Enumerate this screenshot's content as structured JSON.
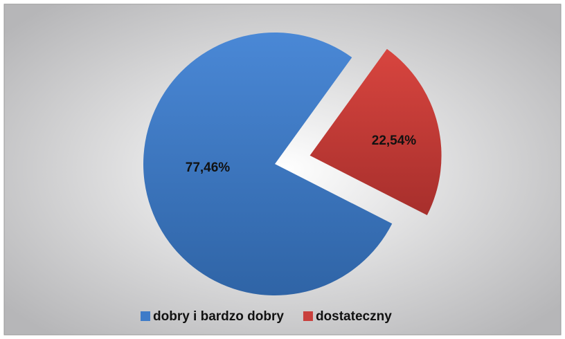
{
  "chart_data": {
    "type": "pie",
    "categories": [
      "dobry i bardzo dobry",
      "dostateczny"
    ],
    "values": [
      77.46,
      22.54
    ],
    "value_labels": [
      "77,46%",
      "22,54%"
    ],
    "colors": [
      "#3e7bc8",
      "#c9403d"
    ],
    "legend": "bottom"
  }
}
